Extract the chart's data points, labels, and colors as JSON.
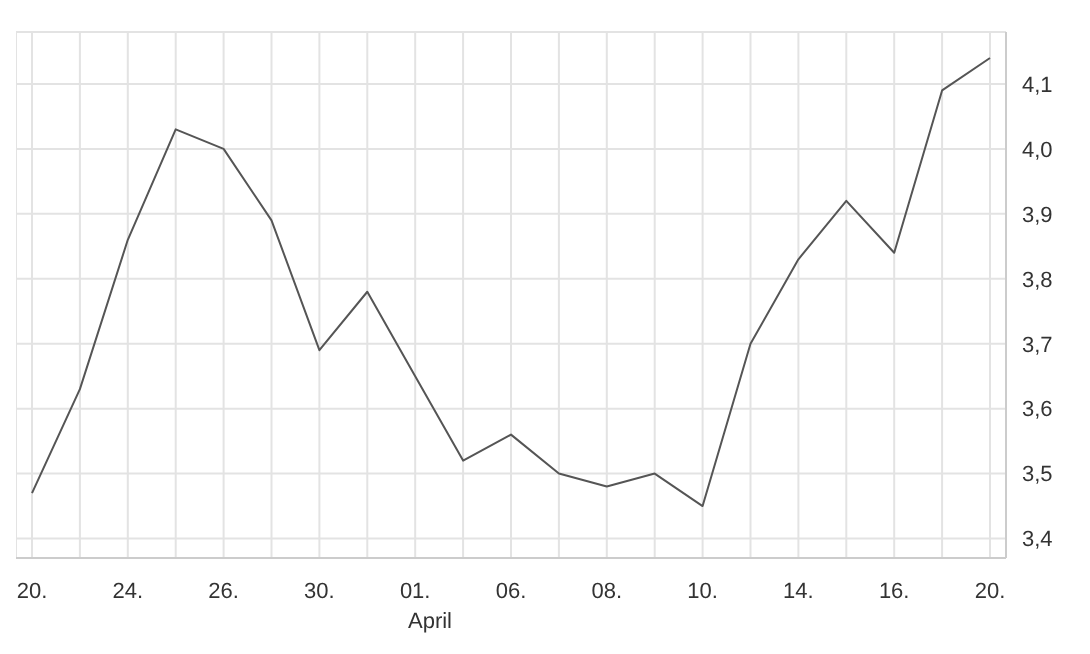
{
  "chart_data": {
    "type": "line",
    "categories": [
      "20.",
      null,
      "24.",
      null,
      "26.",
      null,
      "30.",
      null,
      "01.",
      null,
      "06.",
      null,
      "08.",
      null,
      "10.",
      null,
      "14.",
      null,
      "16.",
      null,
      "20."
    ],
    "series": [
      {
        "color": "#555555",
        "values": [
          3.47,
          3.63,
          3.86,
          4.03,
          4.0,
          3.89,
          3.69,
          3.78,
          3.65,
          3.52,
          3.56,
          3.5,
          3.48,
          3.5,
          3.45,
          3.7,
          3.83,
          3.92,
          3.84,
          4.09,
          4.14
        ]
      }
    ],
    "ylim": [
      3.37,
      4.18
    ],
    "yticks": [
      {
        "value": 3.4,
        "label": "3,4"
      },
      {
        "value": 3.5,
        "label": "3,5"
      },
      {
        "value": 3.6,
        "label": "3,6"
      },
      {
        "value": 3.7,
        "label": "3,7"
      },
      {
        "value": 3.8,
        "label": "3,8"
      },
      {
        "value": 3.9,
        "label": "3,9"
      },
      {
        "value": 4.0,
        "label": "4,0"
      },
      {
        "value": 4.1,
        "label": "4,1"
      }
    ],
    "annotations": [
      "April"
    ],
    "grid": true,
    "marker": "none",
    "line_style": "solid"
  }
}
